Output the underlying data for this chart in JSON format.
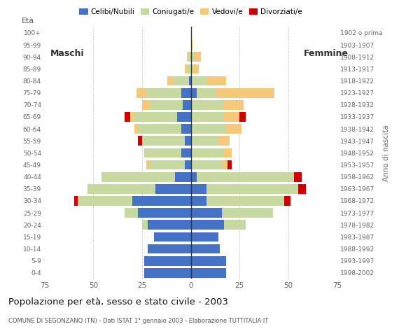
{
  "age_groups": [
    "0-4",
    "5-9",
    "10-14",
    "15-19",
    "20-24",
    "25-29",
    "30-34",
    "35-39",
    "40-44",
    "45-49",
    "50-54",
    "55-59",
    "60-64",
    "65-69",
    "70-74",
    "75-79",
    "80-84",
    "85-89",
    "90-94",
    "95-99",
    "100+"
  ],
  "birth_years": [
    "1998-2002",
    "1993-1997",
    "1988-1992",
    "1983-1987",
    "1978-1982",
    "1973-1977",
    "1968-1972",
    "1963-1967",
    "1958-1962",
    "1953-1957",
    "1948-1952",
    "1943-1947",
    "1938-1942",
    "1933-1937",
    "1928-1932",
    "1923-1927",
    "1918-1922",
    "1913-1917",
    "1908-1912",
    "1903-1907",
    "1902 o prima"
  ],
  "colors": {
    "celibe": "#4472C4",
    "coniugato": "#C6D9A0",
    "vedovo": "#F5C87A",
    "divorziato": "#CC0000"
  },
  "males": {
    "celibe": [
      24,
      24,
      22,
      19,
      22,
      27,
      30,
      18,
      8,
      3,
      5,
      3,
      5,
      7,
      4,
      5,
      1,
      0,
      0,
      0,
      0
    ],
    "coniugato": [
      0,
      0,
      0,
      0,
      3,
      7,
      28,
      35,
      38,
      18,
      19,
      22,
      22,
      22,
      17,
      18,
      8,
      2,
      1,
      0,
      0
    ],
    "vedovo": [
      0,
      0,
      0,
      0,
      0,
      0,
      0,
      0,
      0,
      2,
      0,
      0,
      2,
      2,
      4,
      5,
      3,
      1,
      1,
      0,
      0
    ],
    "divorziato": [
      0,
      0,
      0,
      0,
      0,
      0,
      2,
      0,
      0,
      0,
      0,
      2,
      0,
      3,
      0,
      0,
      0,
      0,
      0,
      0,
      0
    ]
  },
  "females": {
    "celibe": [
      18,
      18,
      15,
      14,
      17,
      16,
      8,
      8,
      3,
      0,
      0,
      0,
      0,
      0,
      0,
      3,
      0,
      0,
      0,
      0,
      0
    ],
    "coniugata": [
      0,
      0,
      0,
      0,
      11,
      26,
      40,
      47,
      50,
      16,
      17,
      14,
      18,
      17,
      17,
      10,
      8,
      1,
      2,
      0,
      0
    ],
    "vedova": [
      0,
      0,
      0,
      0,
      0,
      0,
      0,
      0,
      0,
      3,
      4,
      6,
      8,
      8,
      10,
      30,
      10,
      3,
      3,
      1,
      0
    ],
    "divorziata": [
      0,
      0,
      0,
      0,
      0,
      0,
      3,
      4,
      4,
      2,
      0,
      0,
      0,
      3,
      0,
      0,
      0,
      0,
      0,
      0,
      0
    ]
  },
  "title": "Popolazione per età, sesso e stato civile - 2003",
  "subtitle": "COMUNE DI SEGONZANO (TN) - Dati ISTAT 1° gennaio 2003 - Elaborazione TUTTITALIA.IT",
  "xlim": 75,
  "legend_labels": [
    "Celibi/Nubili",
    "Coniugati/e",
    "Vedovi/e",
    "Divorziati/e"
  ],
  "ylabel_left": "Età",
  "ylabel_right": "Anno di nascita",
  "label_maschi": "Maschi",
  "label_femmine": "Femmine",
  "background_color": "#ffffff"
}
